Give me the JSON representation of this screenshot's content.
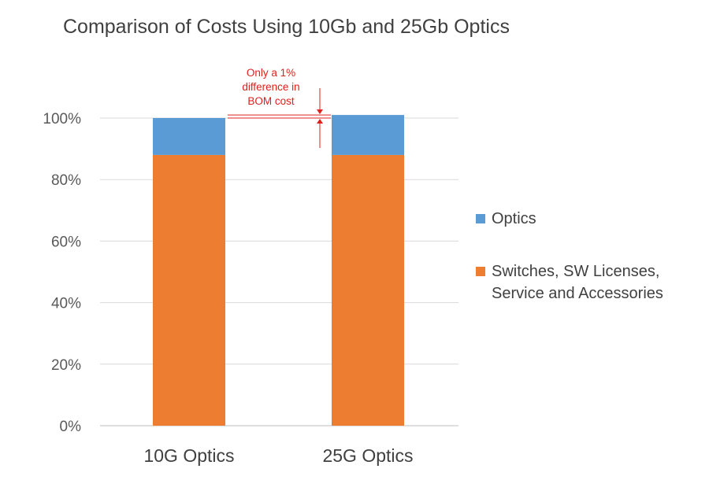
{
  "chart_data": {
    "type": "bar",
    "stacked": true,
    "title": "Comparison of Costs Using 10Gb and 25Gb Optics",
    "categories": [
      "10G Optics",
      "25G Optics"
    ],
    "series": [
      {
        "name": "Switches, SW Licenses, Service and Accessories",
        "values": [
          88,
          88
        ],
        "color": "#ed7d31"
      },
      {
        "name": "Optics",
        "values": [
          12,
          13
        ],
        "color": "#5b9bd5"
      }
    ],
    "ylim": [
      0,
      100
    ],
    "yticks": [
      0,
      20,
      40,
      60,
      80,
      100
    ],
    "ytick_labels": [
      "0%",
      "20%",
      "40%",
      "60%",
      "80%",
      "100%"
    ],
    "xlabel": "",
    "ylabel": "",
    "grid": true,
    "legend_position": "right",
    "legend": {
      "optics_label": "Optics",
      "switches_label_line1": "Switches, SW Licenses,",
      "switches_label_line2": "Service and Accessories"
    },
    "annotation": {
      "line1": "Only a 1%",
      "line2": "difference in",
      "line3": "BOM cost",
      "color": "#e0201b"
    }
  }
}
